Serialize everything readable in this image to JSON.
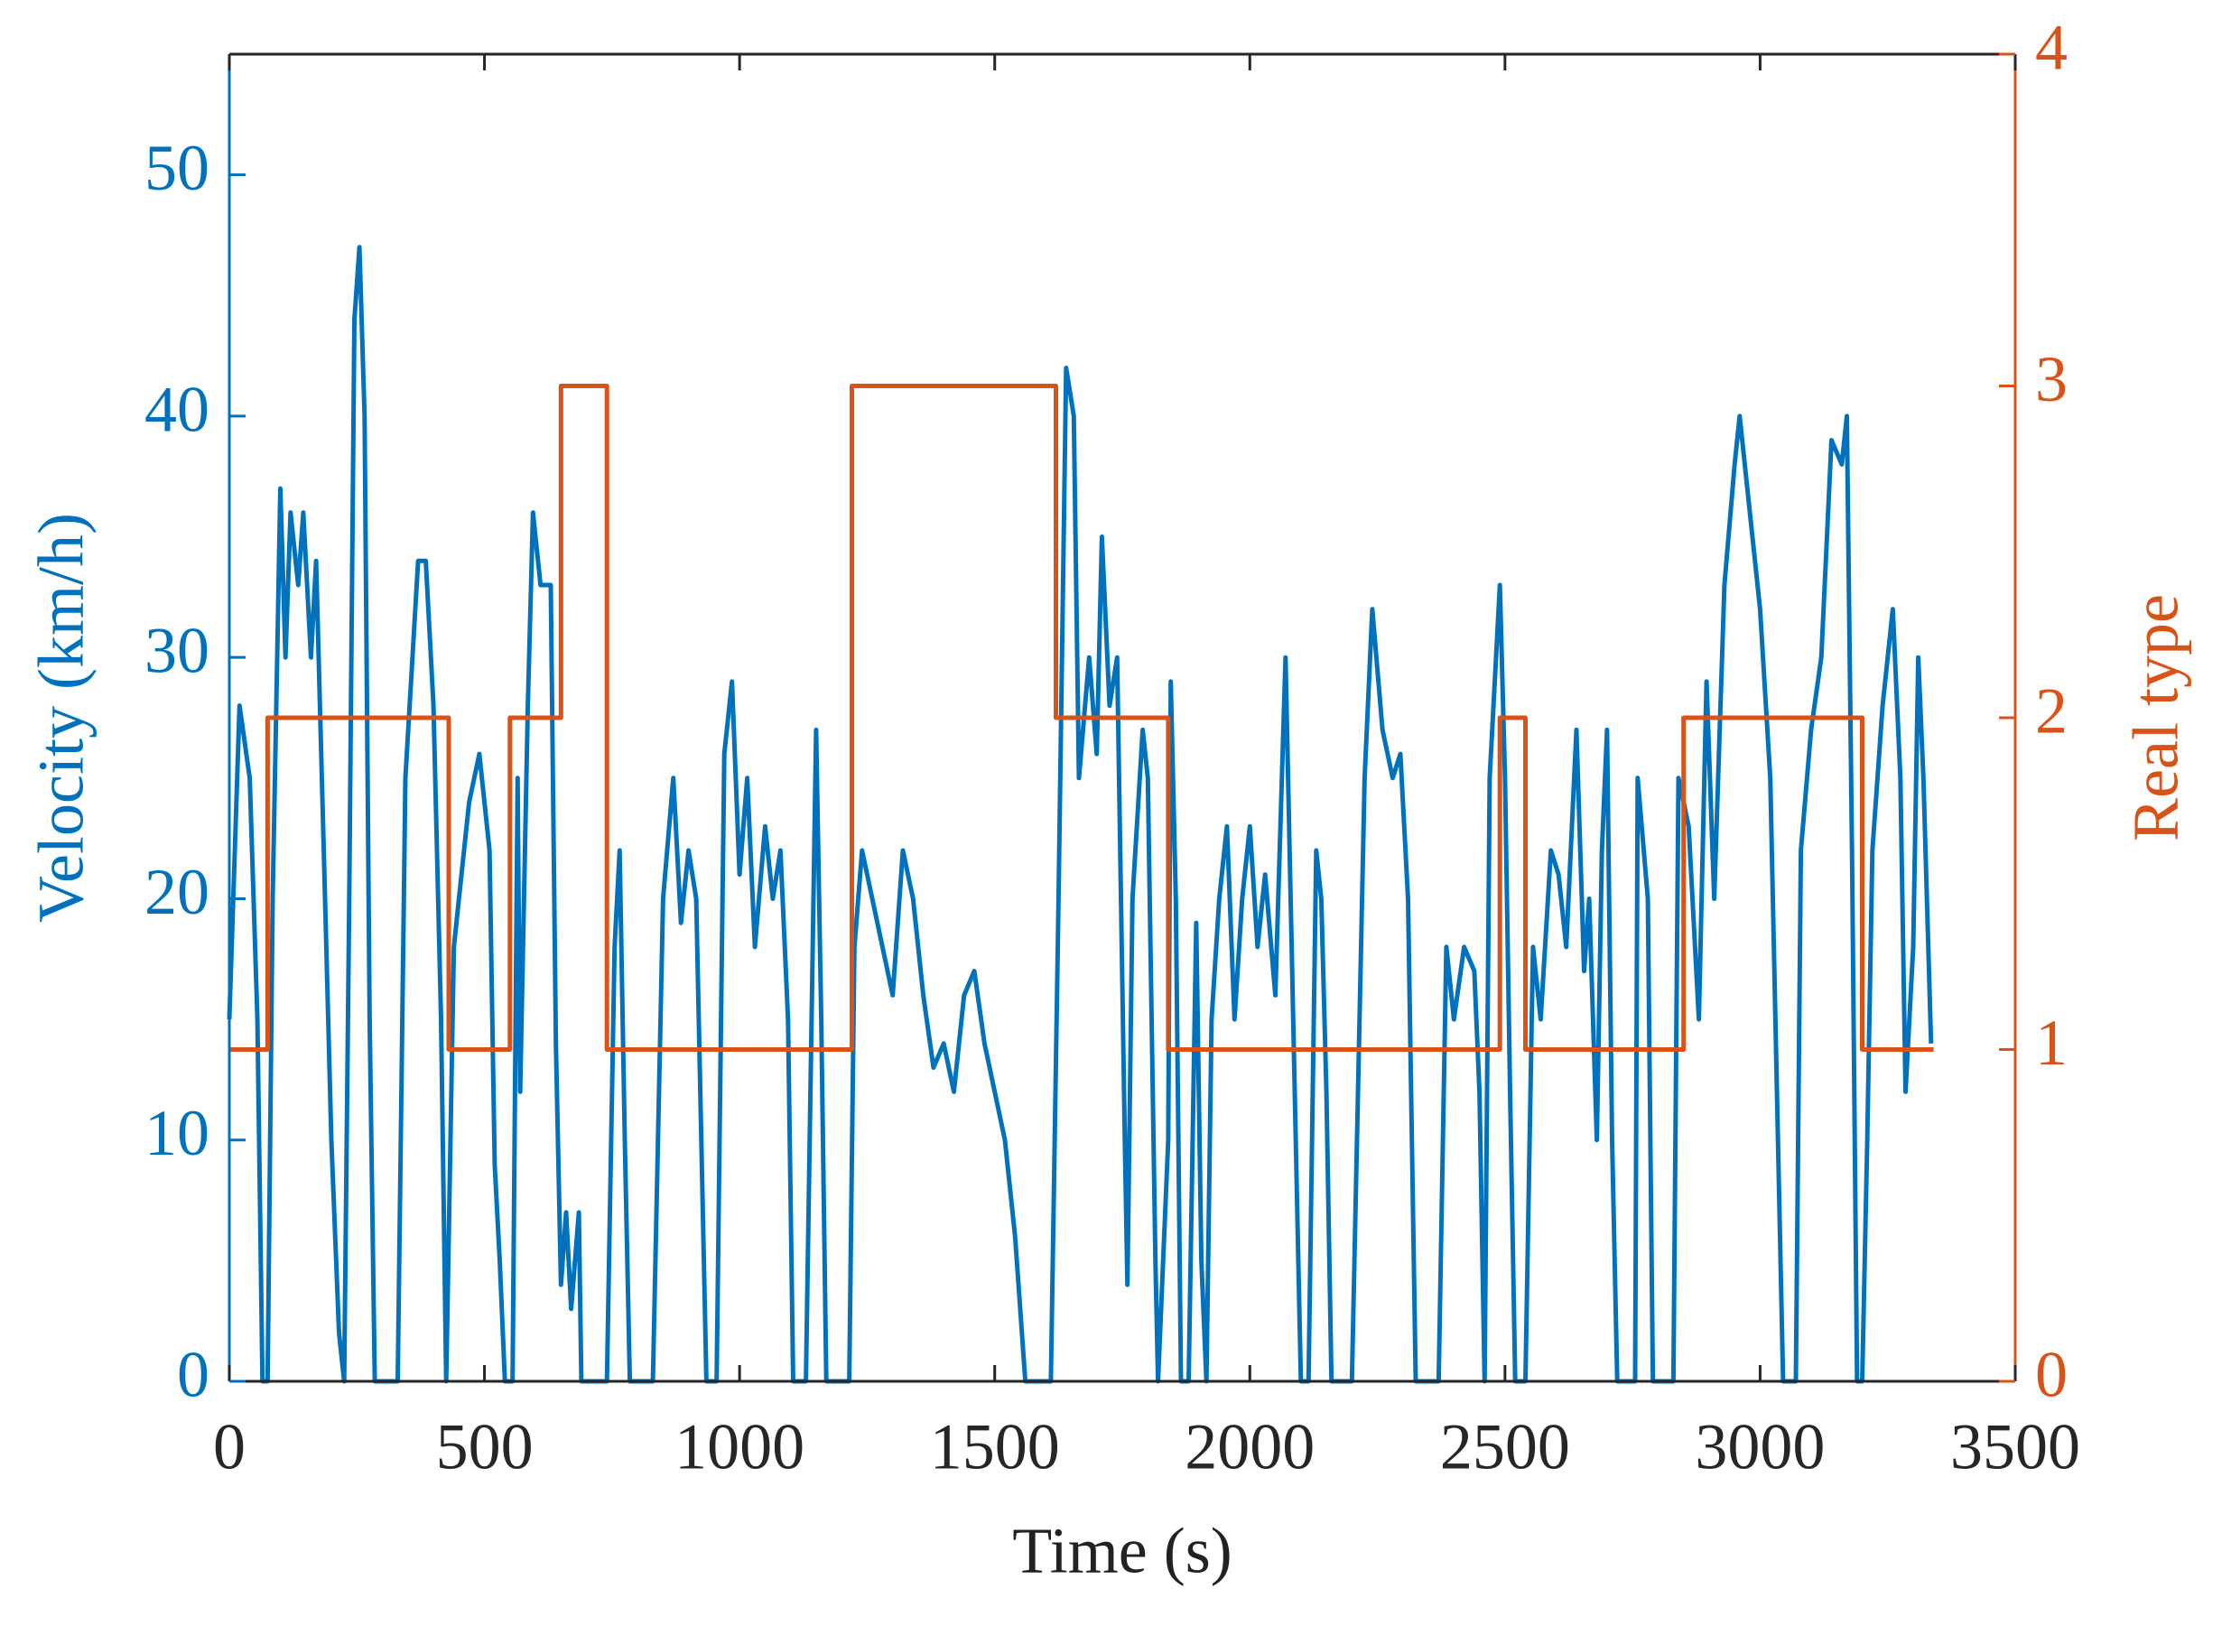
{
  "chart_data": {
    "type": "line",
    "xlabel": "Time (s)",
    "ylabel": "Velocity (km/h)",
    "y2label": "Real type",
    "xlim": [
      0,
      3500
    ],
    "xticks": [
      0,
      500,
      1000,
      1500,
      2000,
      2500,
      3000,
      3500
    ],
    "ylim": [
      0,
      55
    ],
    "yticks": [
      0,
      10,
      20,
      30,
      40,
      50
    ],
    "y2lim": [
      0,
      4
    ],
    "y2ticks": [
      0,
      1,
      2,
      3,
      4
    ],
    "series": [
      {
        "color": "#0072BD",
        "x": [
          0,
          20,
          40,
          55,
          65,
          75,
          85,
          100,
          110,
          120,
          135,
          145,
          160,
          170,
          185,
          200,
          215,
          225,
          235,
          245,
          255,
          265,
          275,
          285,
          330,
          345,
          370,
          385,
          400,
          415,
          425,
          440,
          450,
          470,
          490,
          510,
          520,
          530,
          540,
          555,
          565,
          570,
          585,
          595,
          610,
          630,
          640,
          650,
          660,
          670,
          685,
          690,
          740,
          755,
          765,
          775,
          785,
          830,
          850,
          870,
          885,
          900,
          915,
          935,
          955,
          970,
          985,
          1000,
          1015,
          1030,
          1050,
          1065,
          1080,
          1095,
          1105,
          1130,
          1150,
          1160,
          1170,
          1215,
          1225,
          1240,
          1260,
          1280,
          1300,
          1320,
          1340,
          1360,
          1380,
          1400,
          1420,
          1440,
          1460,
          1480,
          1500,
          1520,
          1540,
          1560,
          1610,
          1625,
          1640,
          1655,
          1665,
          1685,
          1700,
          1710,
          1725,
          1740,
          1755,
          1760,
          1770,
          1790,
          1800,
          1815,
          1820,
          1840,
          1845,
          1855,
          1865,
          1880,
          1895,
          1905,
          1915,
          1925,
          1940,
          1955,
          1970,
          1985,
          2000,
          2015,
          2030,
          2050,
          2070,
          2085,
          2100,
          2115,
          2130,
          2140,
          2150,
          2160,
          2200,
          2225,
          2240,
          2260,
          2280,
          2295,
          2310,
          2325,
          2370,
          2385,
          2400,
          2420,
          2440,
          2450,
          2460,
          2470,
          2490,
          2500,
          2510,
          2520,
          2540,
          2555,
          2570,
          2590,
          2605,
          2620,
          2640,
          2655,
          2665,
          2680,
          2690,
          2700,
          2710,
          2720,
          2755,
          2760,
          2780,
          2790,
          2830,
          2840,
          2860,
          2880,
          2895,
          2910,
          2930,
          2950,
          2960,
          2980,
          3000,
          3020,
          3035,
          3045,
          3070,
          3080,
          3100,
          3120,
          3140,
          3160,
          3170,
          3180,
          3190,
          3200,
          3210,
          3220,
          3240,
          3260,
          3275,
          3285,
          3300,
          3310,
          3320,
          3335
        ],
        "values": [
          15,
          28,
          25,
          15,
          0,
          0,
          20,
          37,
          30,
          36,
          33,
          36,
          30,
          34,
          22,
          10,
          2,
          0,
          20,
          44,
          47,
          40,
          15,
          0,
          0,
          25,
          34,
          34,
          28,
          15,
          0,
          18,
          20,
          24,
          26,
          22,
          9,
          5,
          0,
          0,
          25,
          12,
          28,
          36,
          33,
          33,
          14,
          4,
          7,
          3,
          7,
          0,
          0,
          18,
          22,
          10,
          0,
          0,
          20,
          25,
          19,
          22,
          20,
          0,
          0,
          26,
          29,
          21,
          25,
          18,
          23,
          20,
          22,
          15,
          0,
          0,
          27,
          15,
          0,
          0,
          18,
          22,
          20,
          18,
          16,
          22,
          20,
          16,
          13,
          14,
          12,
          16,
          17,
          14,
          12,
          10,
          6,
          0,
          0,
          20,
          42,
          40,
          25,
          30,
          26,
          35,
          28,
          30,
          10,
          4,
          20,
          27,
          25,
          5,
          0,
          10,
          29,
          20,
          0,
          0,
          19,
          5,
          0,
          15,
          20,
          23,
          15,
          20,
          23,
          18,
          21,
          16,
          30,
          15,
          0,
          0,
          22,
          20,
          12,
          0,
          0,
          25,
          32,
          27,
          25,
          26,
          20,
          0,
          0,
          18,
          15,
          18,
          17,
          12,
          0,
          25,
          33,
          25,
          12,
          0,
          0,
          18,
          15,
          22,
          21,
          18,
          27,
          17,
          20,
          10,
          22,
          27,
          10,
          0,
          0,
          25,
          20,
          0,
          0,
          25,
          23,
          15,
          29,
          20,
          33,
          38,
          40,
          36,
          32,
          25,
          10,
          0,
          0,
          22,
          27,
          30,
          39,
          38,
          40,
          22,
          0,
          0,
          10,
          22,
          28,
          32,
          25,
          12,
          18,
          30,
          25,
          14
        ]
      },
      {
        "color": "#D95319",
        "axis": "y2",
        "x": [
          0,
          75,
          75,
          430,
          430,
          550,
          550,
          650,
          650,
          740,
          740,
          1220,
          1220,
          1620,
          1620,
          1840,
          1840,
          2490,
          2490,
          2540,
          2540,
          2850,
          2850,
          3200,
          3200,
          3340
        ],
        "values": [
          1,
          1,
          2,
          2,
          1,
          1,
          2,
          2,
          3,
          3,
          1,
          1,
          3,
          3,
          2,
          2,
          1,
          1,
          2,
          2,
          1,
          1,
          2,
          2,
          1,
          1
        ]
      }
    ]
  }
}
